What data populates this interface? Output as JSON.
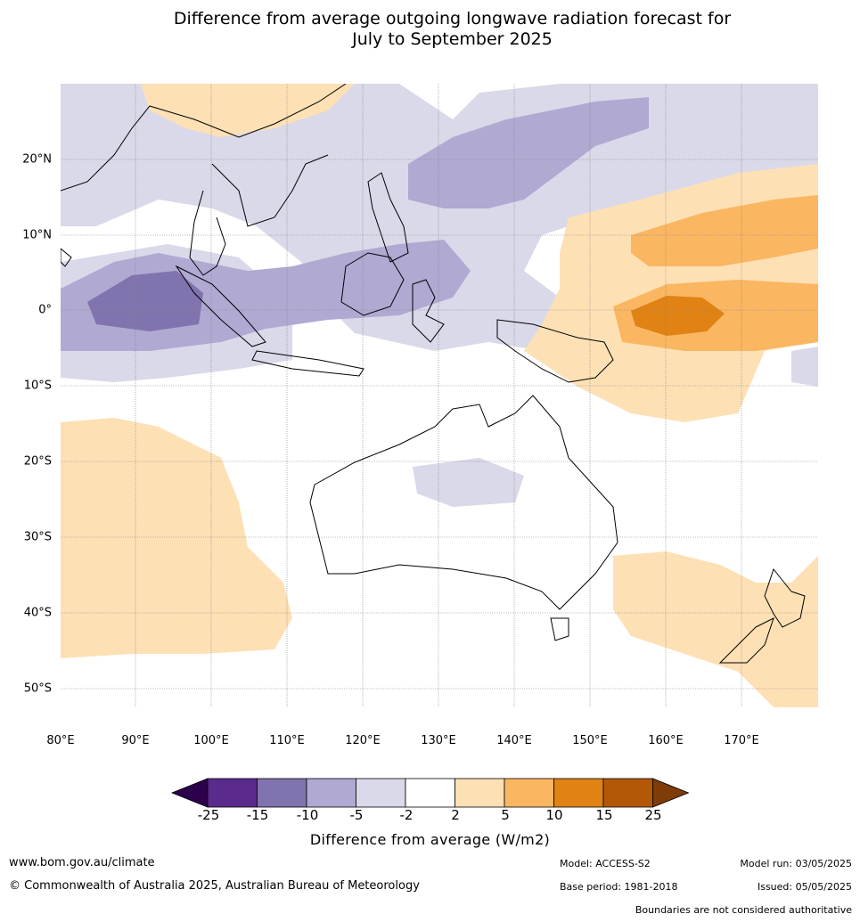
{
  "title": {
    "line1": "Difference from average outgoing longwave radiation forecast for",
    "line2": "July to September 2025"
  },
  "map": {
    "lat_labels": [
      "20°N",
      "10°N",
      "0°",
      "10°S",
      "20°S",
      "30°S",
      "40°S",
      "50°S"
    ],
    "lon_labels": [
      "80°E",
      "90°E",
      "100°E",
      "110°E",
      "120°E",
      "130°E",
      "140°E",
      "150°E",
      "160°E",
      "170°E"
    ],
    "land_outline_color": "#000000",
    "gridline_color": "#888888"
  },
  "colorbar": {
    "title": "Difference from average (W/m2)",
    "ticks": [
      "-25",
      "-15",
      "-10",
      "-5",
      "-2",
      "2",
      "5",
      "10",
      "15",
      "25"
    ],
    "colors": [
      "#5a2a8c",
      "#8173ad",
      "#b0a9d2",
      "#d9d9ea",
      "#ffffff",
      "#fee0b5",
      "#fbb662",
      "#e08214",
      "#b35806"
    ],
    "under_color": "#2d004b",
    "over_color": "#7f3b08"
  },
  "footer": {
    "website": "www.bom.gov.au/climate",
    "copyright": "© Commonwealth of Australia 2025, Australian Bureau of Meteorology",
    "model": "Model: ACCESS-S2",
    "base_period": "Base period: 1981-2018",
    "model_run": "Model run: 03/05/2025",
    "issued": "Issued: 05/05/2025",
    "disclaimer": "Boundaries are not considered authoritative"
  }
}
